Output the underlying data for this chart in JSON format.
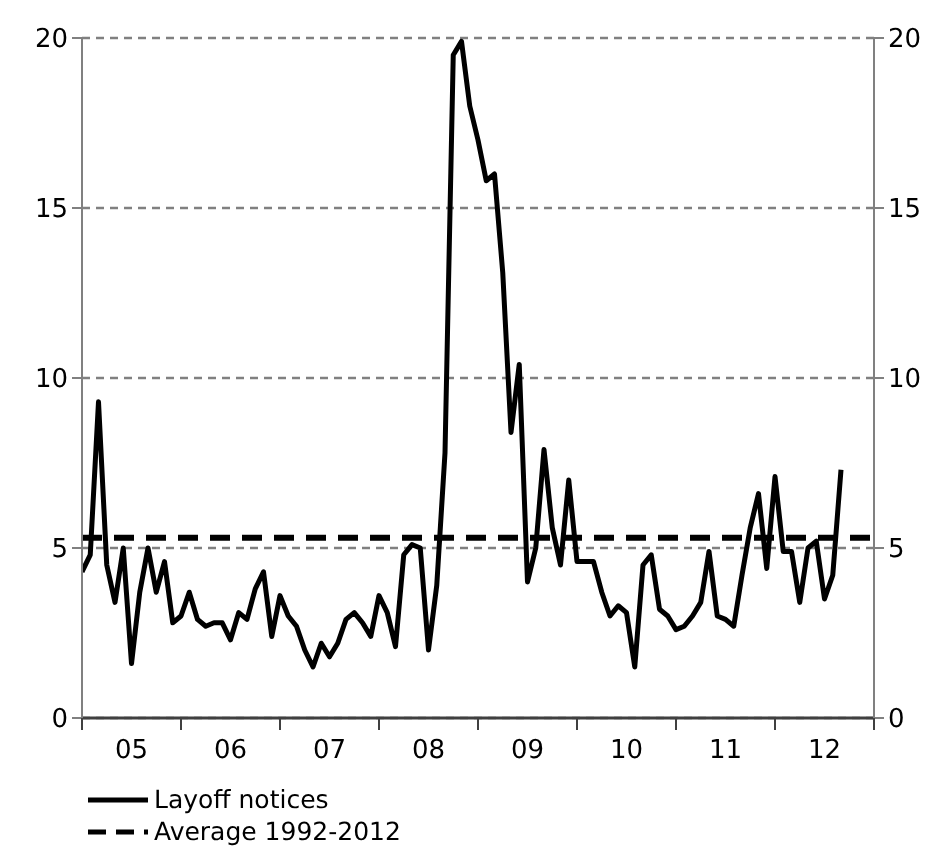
{
  "chart_data": {
    "type": "line",
    "x": [
      "2005-01",
      "2005-02",
      "2005-03",
      "2005-04",
      "2005-05",
      "2005-06",
      "2005-07",
      "2005-08",
      "2005-09",
      "2005-10",
      "2005-11",
      "2005-12",
      "2006-01",
      "2006-02",
      "2006-03",
      "2006-04",
      "2006-05",
      "2006-06",
      "2006-07",
      "2006-08",
      "2006-09",
      "2006-10",
      "2006-11",
      "2006-12",
      "2007-01",
      "2007-02",
      "2007-03",
      "2007-04",
      "2007-05",
      "2007-06",
      "2007-07",
      "2007-08",
      "2007-09",
      "2007-10",
      "2007-11",
      "2007-12",
      "2008-01",
      "2008-02",
      "2008-03",
      "2008-04",
      "2008-05",
      "2008-06",
      "2008-07",
      "2008-08",
      "2008-09",
      "2008-10",
      "2008-11",
      "2008-12",
      "2009-01",
      "2009-02",
      "2009-03",
      "2009-04",
      "2009-05",
      "2009-06",
      "2009-07",
      "2009-08",
      "2009-09",
      "2009-10",
      "2009-11",
      "2009-12",
      "2010-01",
      "2010-02",
      "2010-03",
      "2010-04",
      "2010-05",
      "2010-06",
      "2010-07",
      "2010-08",
      "2010-09",
      "2010-10",
      "2010-11",
      "2010-12",
      "2011-01",
      "2011-02",
      "2011-03",
      "2011-04",
      "2011-05",
      "2011-06",
      "2011-07",
      "2011-08",
      "2011-09",
      "2011-10",
      "2011-11",
      "2011-12",
      "2012-01",
      "2012-02",
      "2012-03",
      "2012-04",
      "2012-05",
      "2012-06",
      "2012-07",
      "2012-08",
      "2012-09"
    ],
    "series": [
      {
        "name": "Layoff notices",
        "color": "#000000",
        "values": [
          4.3,
          4.8,
          9.3,
          4.5,
          3.4,
          5.0,
          1.6,
          3.7,
          5.0,
          3.7,
          4.6,
          2.8,
          3.0,
          3.7,
          2.9,
          2.7,
          2.8,
          2.8,
          2.3,
          3.1,
          2.9,
          3.8,
          4.3,
          2.4,
          3.6,
          3.0,
          2.7,
          2.0,
          1.5,
          2.2,
          1.8,
          2.2,
          2.9,
          3.1,
          2.8,
          2.4,
          3.6,
          3.1,
          2.1,
          4.8,
          5.1,
          5.0,
          2.0,
          3.9,
          7.8,
          19.5,
          19.9,
          18.0,
          17.0,
          15.8,
          16.0,
          13.1,
          8.4,
          10.4,
          4.0,
          5.0,
          7.9,
          5.6,
          4.5,
          7.0,
          4.6,
          4.6,
          4.6,
          3.7,
          3.0,
          3.3,
          3.1,
          1.5,
          4.5,
          4.8,
          3.2,
          3.0,
          2.6,
          2.7,
          3.0,
          3.4,
          4.9,
          3.0,
          2.9,
          2.7,
          4.2,
          5.6,
          6.6,
          4.4,
          7.1,
          4.9,
          4.9,
          3.4,
          5.0,
          5.2,
          3.5,
          4.2,
          7.3
        ]
      }
    ],
    "xlim": [
      "2005-01",
      "2013-01"
    ],
    "xticks": [
      {
        "value": "2005-01",
        "label": null
      },
      {
        "value": "2005-07",
        "label": "05"
      },
      {
        "value": "2006-01",
        "label": null
      },
      {
        "value": "2006-07",
        "label": "06"
      },
      {
        "value": "2007-01",
        "label": null
      },
      {
        "value": "2007-07",
        "label": "07"
      },
      {
        "value": "2008-01",
        "label": null
      },
      {
        "value": "2008-07",
        "label": "08"
      },
      {
        "value": "2009-01",
        "label": null
      },
      {
        "value": "2009-07",
        "label": "09"
      },
      {
        "value": "2010-01",
        "label": null
      },
      {
        "value": "2010-07",
        "label": "10"
      },
      {
        "value": "2011-01",
        "label": null
      },
      {
        "value": "2011-07",
        "label": "11"
      },
      {
        "value": "2012-01",
        "label": null
      },
      {
        "value": "2012-07",
        "label": "12"
      },
      {
        "value": "2013-01",
        "label": null
      }
    ],
    "ylim": [
      0,
      20
    ],
    "yticks": [
      0,
      5,
      10,
      15,
      20
    ],
    "y2lim": [
      0,
      20
    ],
    "y2ticks": [
      0,
      5,
      10,
      15,
      20
    ],
    "ref_lines": [
      {
        "axis": "y",
        "value": 5.3,
        "label": "Average 1992-2012",
        "color": "#000000",
        "line_style": "dashed"
      }
    ],
    "grid": "y",
    "legend": "bottom left",
    "marker": "none",
    "line_style": "solid"
  }
}
